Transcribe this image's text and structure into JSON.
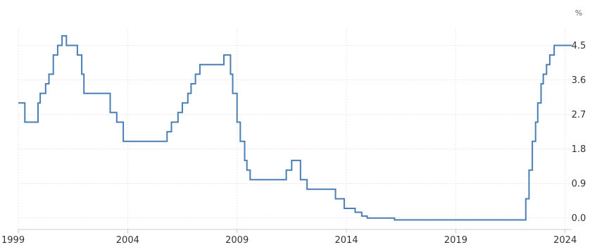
{
  "chart_data": {
    "type": "line",
    "title": "",
    "xlabel": "",
    "ylabel": "",
    "unit": "%",
    "step": true,
    "xlim": [
      1999.0,
      2024.3
    ],
    "ylim": [
      -0.3,
      4.95
    ],
    "grid": true,
    "x_ticks": [
      1999,
      2004,
      2009,
      2014,
      2019,
      2024
    ],
    "x_tick_labels": [
      "1999",
      "2004",
      "2009",
      "2014",
      "2019",
      "2024"
    ],
    "y_ticks": [
      0.0,
      0.9,
      1.8,
      2.7,
      3.6,
      4.5
    ],
    "y_tick_labels": [
      "0.0",
      "0.9",
      "1.8",
      "2.7",
      "3.6",
      "4.5"
    ],
    "colors": {
      "line": "#4a7fb5",
      "grid": "#e8e8e8",
      "axis": "#cccccc",
      "text": "#333333"
    },
    "series": [
      {
        "name": "",
        "x": [
          1999.0,
          1999.3,
          1999.9,
          2000.0,
          2000.25,
          2000.4,
          2000.6,
          2000.8,
          2000.9,
          2001.0,
          2001.2,
          2001.7,
          2001.9,
          2002.0,
          2003.2,
          2003.5,
          2003.8,
          2005.8,
          2006.0,
          2006.3,
          2006.5,
          2006.75,
          2006.9,
          2007.1,
          2007.3,
          2007.5,
          2008.4,
          2008.7,
          2008.8,
          2008.9,
          2009.0,
          2009.15,
          2009.35,
          2009.45,
          2009.6,
          2011.25,
          2011.5,
          2011.9,
          2012.2,
          2012.8,
          2013.5,
          2013.9,
          2014.4,
          2014.7,
          2014.95,
          2016.2,
          2022.2,
          2022.35,
          2022.5,
          2022.65,
          2022.75,
          2022.9,
          2023.0,
          2023.15,
          2023.3,
          2023.5,
          2024.3
        ],
        "values": [
          3.0,
          2.5,
          3.0,
          3.25,
          3.5,
          3.75,
          4.25,
          4.5,
          4.5,
          4.75,
          4.5,
          4.25,
          3.75,
          3.25,
          2.75,
          2.5,
          2.0,
          2.25,
          2.5,
          2.75,
          3.0,
          3.25,
          3.5,
          3.75,
          4.0,
          4.0,
          4.25,
          3.75,
          3.25,
          3.25,
          2.5,
          2.0,
          1.5,
          1.25,
          1.0,
          1.25,
          1.5,
          1.0,
          0.75,
          0.75,
          0.5,
          0.25,
          0.15,
          0.05,
          0.0,
          -0.05,
          0.5,
          1.25,
          2.0,
          2.5,
          3.0,
          3.5,
          3.75,
          4.0,
          4.25,
          4.5,
          4.5
        ]
      }
    ]
  }
}
